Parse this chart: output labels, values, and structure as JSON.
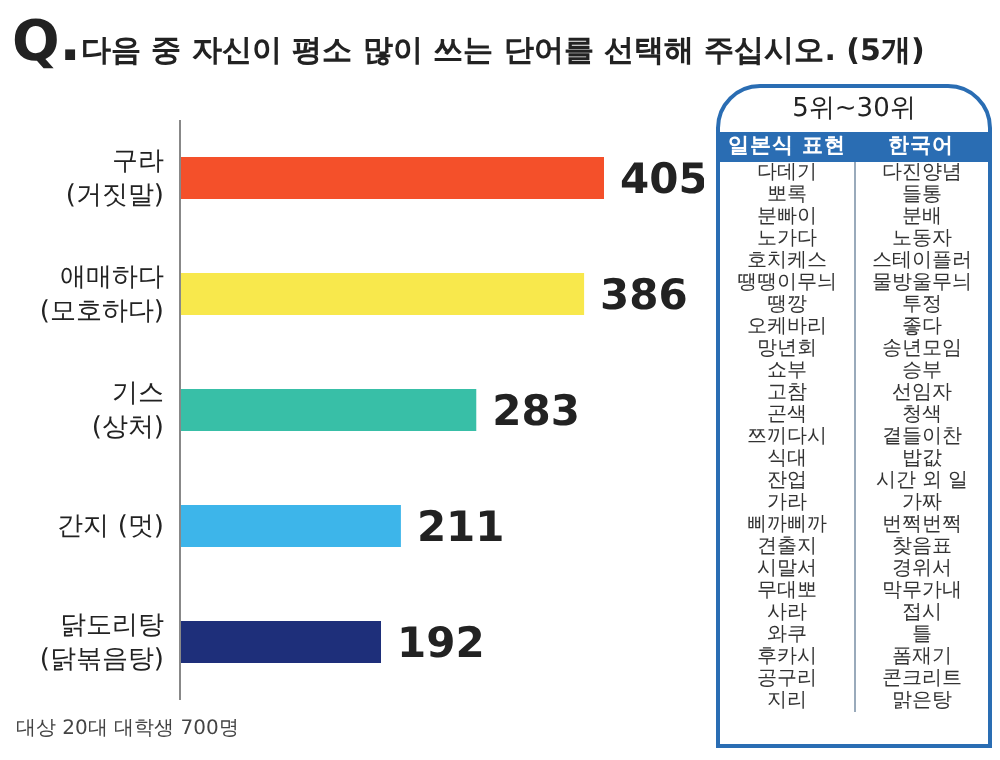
{
  "chart_data": [
    {
      "type": "bar",
      "orientation": "horizontal",
      "title": "Q.다음 중 자신이 평소 많이 쓰는 단어를 선택해 주십시오. (5개)",
      "categories": [
        "구라\n(거짓말)",
        "애매하다\n(모호하다)",
        "기스\n(상처)",
        "간지 (멋)",
        "닭도리탕\n(닭볶음탕)"
      ],
      "values": [
        405,
        386,
        283,
        211,
        192
      ],
      "colors": [
        "#f4502a",
        "#f8e84c",
        "#38bfa7",
        "#3db5ea",
        "#1e2f7a"
      ],
      "data_labels": true,
      "annotations": [
        "대상 20대 대학생 700명"
      ]
    },
    {
      "type": "other",
      "title": "5위~30위",
      "categories": [
        "일본식 표현",
        "한국어"
      ],
      "annotations": [
        "다데기",
        "다진양념",
        "뽀록",
        "들통",
        "분빠이",
        "분배",
        "노가다",
        "노동자",
        "호치케스",
        "스테이플러",
        "땡땡이무늬",
        "물방울무늬",
        "땡깡",
        "투정",
        "오케바리",
        "좋다",
        "망년회",
        "송년모임",
        "쇼부",
        "승부",
        "고참",
        "선임자",
        "곤색",
        "청색",
        "쯔끼다시",
        "곁들이찬",
        "식대",
        "밥값",
        "잔업",
        "시간 외 일",
        "가라",
        "가짜",
        "삐까삐까",
        "번쩍번쩍",
        "견출지",
        "찾음표",
        "시말서",
        "경위서",
        "무대뽀",
        "막무가내",
        "사라",
        "접시",
        "와쿠",
        "틀",
        "후카시",
        "폼재기",
        "공구리",
        "콘크리트",
        "지리",
        "맑은탕"
      ]
    }
  ]
}
